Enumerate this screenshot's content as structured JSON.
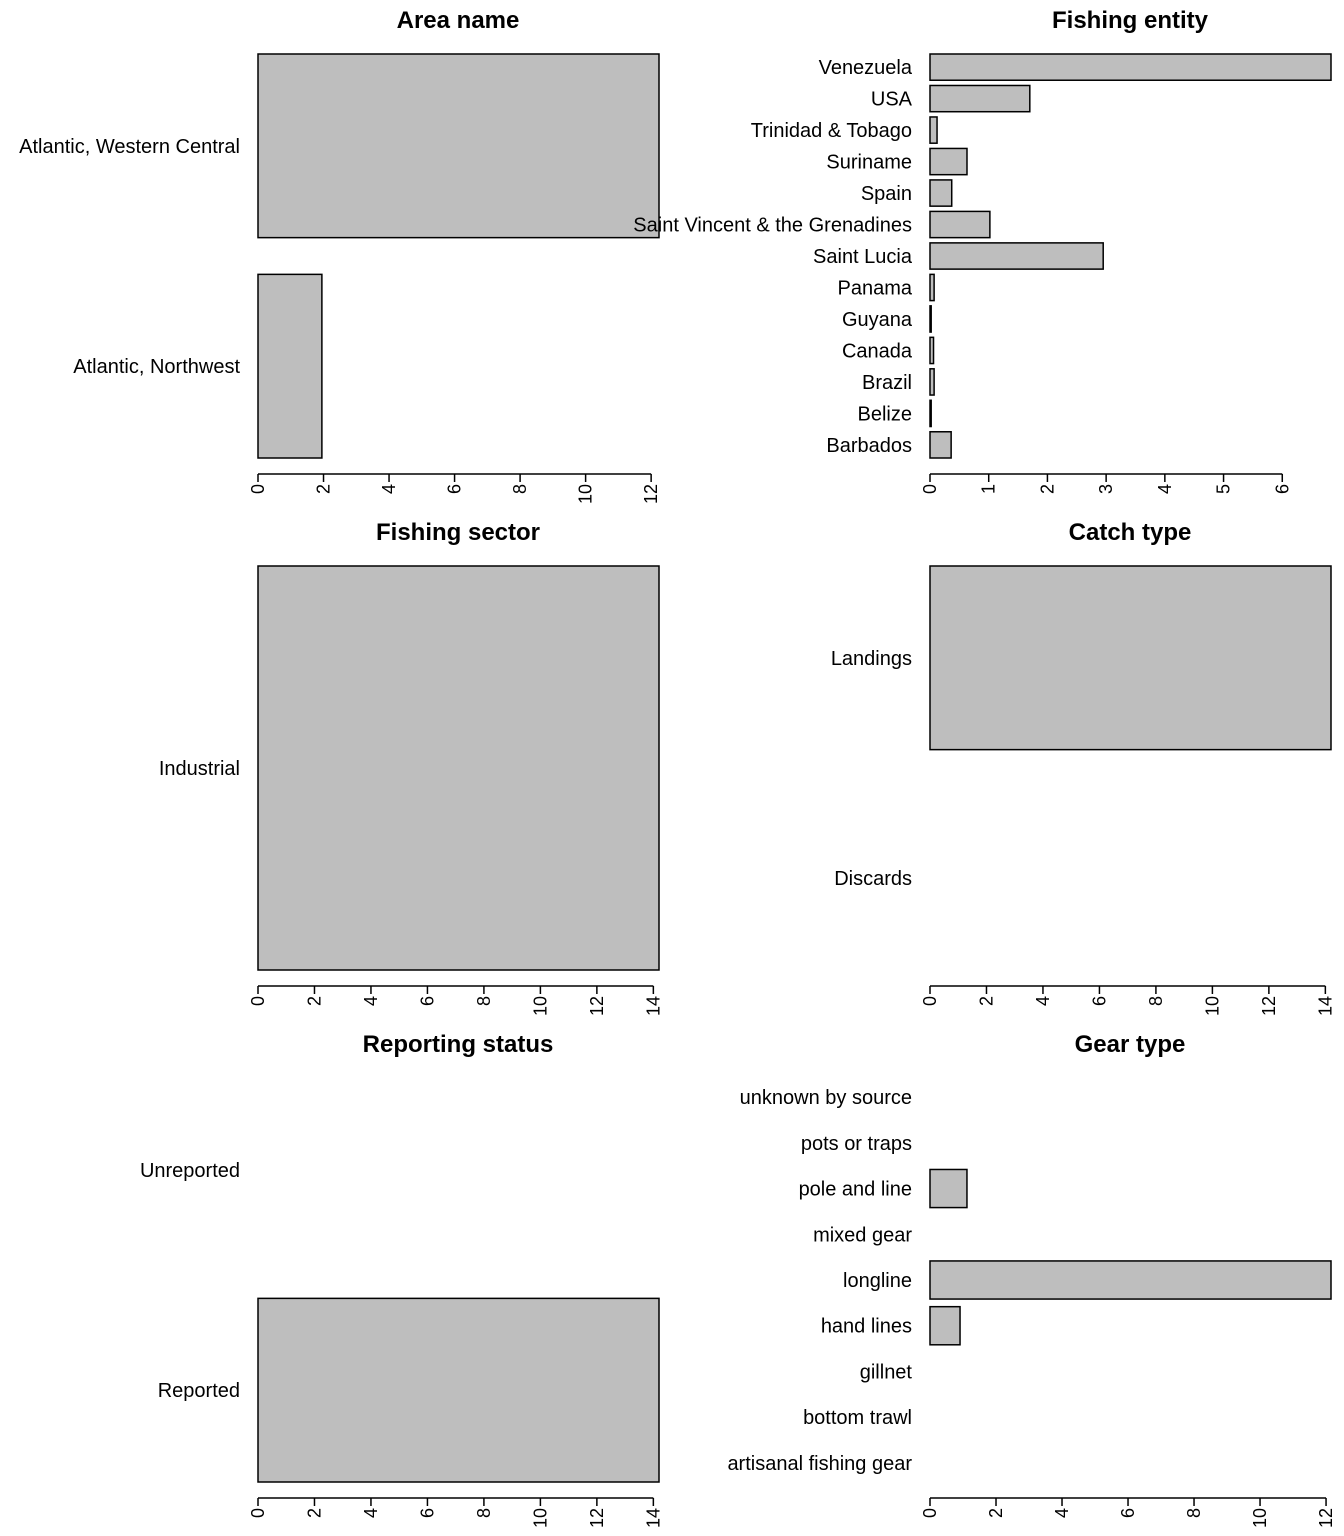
{
  "colors": {
    "bar_fill": "#bebebe",
    "bar_stroke": "#000000"
  },
  "chart_data": [
    {
      "type": "bar",
      "orientation": "horizontal",
      "title": "Area name",
      "categories": [
        "Atlantic, Western Central",
        "Atlantic, Northwest"
      ],
      "values": [
        12.24,
        1.95
      ],
      "xticks": [
        "0",
        "2",
        "4",
        "6",
        "8",
        "10",
        "12"
      ],
      "xlim": [
        0,
        12.24
      ]
    },
    {
      "type": "bar",
      "orientation": "horizontal",
      "title": "Fishing entity",
      "categories": [
        "Venezuela",
        "USA",
        "Trinidad & Tobago",
        "Suriname",
        "Spain",
        "Saint Vincent & the Grenadines",
        "Saint Lucia",
        "Panama",
        "Guyana",
        "Canada",
        "Brazil",
        "Belize",
        "Barbados"
      ],
      "values": [
        6.83,
        1.7,
        0.12,
        0.63,
        0.37,
        1.02,
        2.95,
        0.07,
        0.02,
        0.06,
        0.07,
        0.02,
        0.36
      ],
      "xticks": [
        "0",
        "1",
        "2",
        "3",
        "4",
        "5",
        "6"
      ],
      "xlim": [
        0,
        6.83
      ]
    },
    {
      "type": "bar",
      "orientation": "horizontal",
      "title": "Fishing sector",
      "categories": [
        "Industrial"
      ],
      "values": [
        14.2
      ],
      "xticks": [
        "0",
        "2",
        "4",
        "6",
        "8",
        "10",
        "12",
        "14"
      ],
      "xlim": [
        0,
        14.2
      ]
    },
    {
      "type": "bar",
      "orientation": "horizontal",
      "title": "Catch type",
      "categories": [
        "Landings",
        "Discards"
      ],
      "values": [
        14.2,
        0
      ],
      "xticks": [
        "0",
        "2",
        "4",
        "6",
        "8",
        "10",
        "12",
        "14"
      ],
      "xlim": [
        0,
        14.2
      ]
    },
    {
      "type": "bar",
      "orientation": "horizontal",
      "title": "Reporting status",
      "categories": [
        "Unreported",
        "Reported"
      ],
      "values": [
        0,
        14.2
      ],
      "xticks": [
        "0",
        "2",
        "4",
        "6",
        "8",
        "10",
        "12",
        "14"
      ],
      "xlim": [
        0,
        14.2
      ]
    },
    {
      "type": "bar",
      "orientation": "horizontal",
      "title": "Gear type",
      "categories": [
        "unknown by source",
        "pots or traps",
        "pole and line",
        "mixed gear",
        "longline",
        "hand lines",
        "gillnet",
        "bottom trawl",
        "artisanal fishing gear"
      ],
      "values": [
        0,
        0,
        1.12,
        0,
        12.15,
        0.91,
        0,
        0,
        0
      ],
      "xticks": [
        "0",
        "2",
        "4",
        "6",
        "8",
        "10",
        "12"
      ],
      "xlim": [
        0,
        12.15
      ]
    }
  ]
}
